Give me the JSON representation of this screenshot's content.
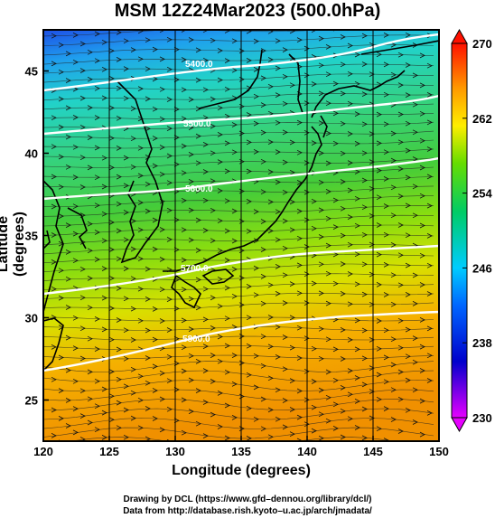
{
  "title": "MSM 12Z24Mar2023 (500.0hPa)",
  "x_axis": {
    "label": "Longitude (degrees)",
    "range": [
      120,
      150
    ],
    "ticks": [
      "120",
      "125",
      "130",
      "135",
      "140",
      "145",
      "150"
    ]
  },
  "y_axis": {
    "label": "Latitude  (degrees)",
    "range": [
      22.5,
      47.5
    ],
    "ticks": [
      "25",
      "30",
      "35",
      "40",
      "45"
    ]
  },
  "colorbar": {
    "range": [
      230,
      270
    ],
    "ticks": [
      "230",
      "238",
      "246",
      "254",
      "262",
      "270"
    ],
    "colors": [
      "#e600ff",
      "#0000cc",
      "#00aaff",
      "#00cc66",
      "#99ee00",
      "#ffcc00",
      "#ff6600",
      "#ff0000"
    ]
  },
  "contours": [
    {
      "label": "5400.0",
      "lat": 45.5
    },
    {
      "label": "5500.0",
      "lat": 43.0
    },
    {
      "label": "5600.0",
      "lat": 39.3
    },
    {
      "label": "5700.0",
      "lat": 33.5
    },
    {
      "label": "5800.0",
      "lat": 30.0
    }
  ],
  "credits": {
    "line1": "Drawing by DCL (https://www.gfd–dennou.org/library/dcl/)",
    "line2": "Data from http://database.rish.kyoto–u.ac.jp/arch/jmadata/"
  }
}
